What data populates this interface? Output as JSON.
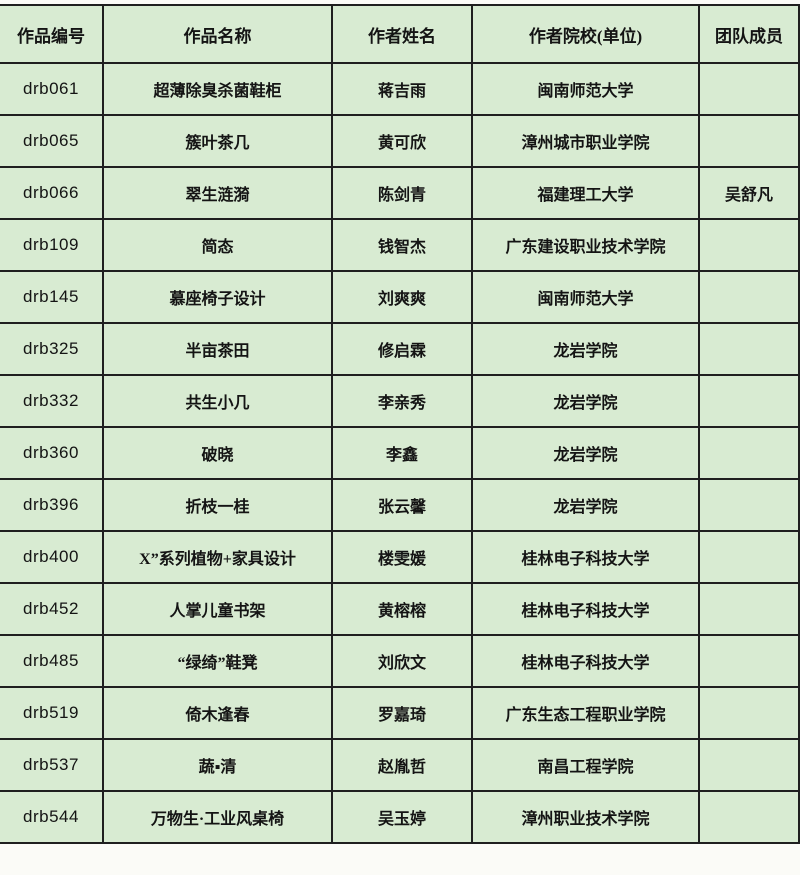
{
  "colors": {
    "cell_background": "#d8ebd2",
    "border": "#1f1f1f",
    "text": "#141414",
    "page_background": "#fbfbf7"
  },
  "table": {
    "headers": [
      "作品编号",
      "作品名称",
      "作者姓名",
      "作者院校(单位)",
      "团队成员"
    ],
    "rows": [
      {
        "id": "drb061",
        "title": "超薄除臭杀菌鞋柜",
        "author": "蒋吉雨",
        "school": "闽南师范大学",
        "team": ""
      },
      {
        "id": "drb065",
        "title": "簇叶茶几",
        "author": "黄可欣",
        "school": "漳州城市职业学院",
        "team": ""
      },
      {
        "id": "drb066",
        "title": "翠生涟漪",
        "author": "陈剑青",
        "school": "福建理工大学",
        "team": "吴舒凡"
      },
      {
        "id": "drb109",
        "title": "简态",
        "author": "钱智杰",
        "school": "广东建设职业技术学院",
        "team": ""
      },
      {
        "id": "drb145",
        "title": "慕座椅子设计",
        "author": "刘爽爽",
        "school": "闽南师范大学",
        "team": ""
      },
      {
        "id": "drb325",
        "title": "半亩茶田",
        "author": "修启霖",
        "school": "龙岩学院",
        "team": ""
      },
      {
        "id": "drb332",
        "title": "共生小几",
        "author": "李亲秀",
        "school": "龙岩学院",
        "team": ""
      },
      {
        "id": "drb360",
        "title": "破晓",
        "author": "李鑫",
        "school": "龙岩学院",
        "team": ""
      },
      {
        "id": "drb396",
        "title": "折枝一桂",
        "author": "张云馨",
        "school": "龙岩学院",
        "team": ""
      },
      {
        "id": "drb400",
        "title": "X”系列植物+家具设计",
        "author": "楼雯媛",
        "school": "桂林电子科技大学",
        "team": ""
      },
      {
        "id": "drb452",
        "title": "人掌儿童书架",
        "author": "黄榕榕",
        "school": "桂林电子科技大学",
        "team": ""
      },
      {
        "id": "drb485",
        "title": "“绿绮”鞋凳",
        "author": "刘欣文",
        "school": "桂林电子科技大学",
        "team": ""
      },
      {
        "id": "drb519",
        "title": "倚木逢春",
        "author": "罗嘉琦",
        "school": "广东生态工程职业学院",
        "team": ""
      },
      {
        "id": "drb537",
        "title": "蔬▪清",
        "author": "赵胤哲",
        "school": "南昌工程学院",
        "team": ""
      },
      {
        "id": "drb544",
        "title": "万物生·工业风桌椅",
        "author": "吴玉婷",
        "school": "漳州职业技术学院",
        "team": ""
      }
    ]
  }
}
